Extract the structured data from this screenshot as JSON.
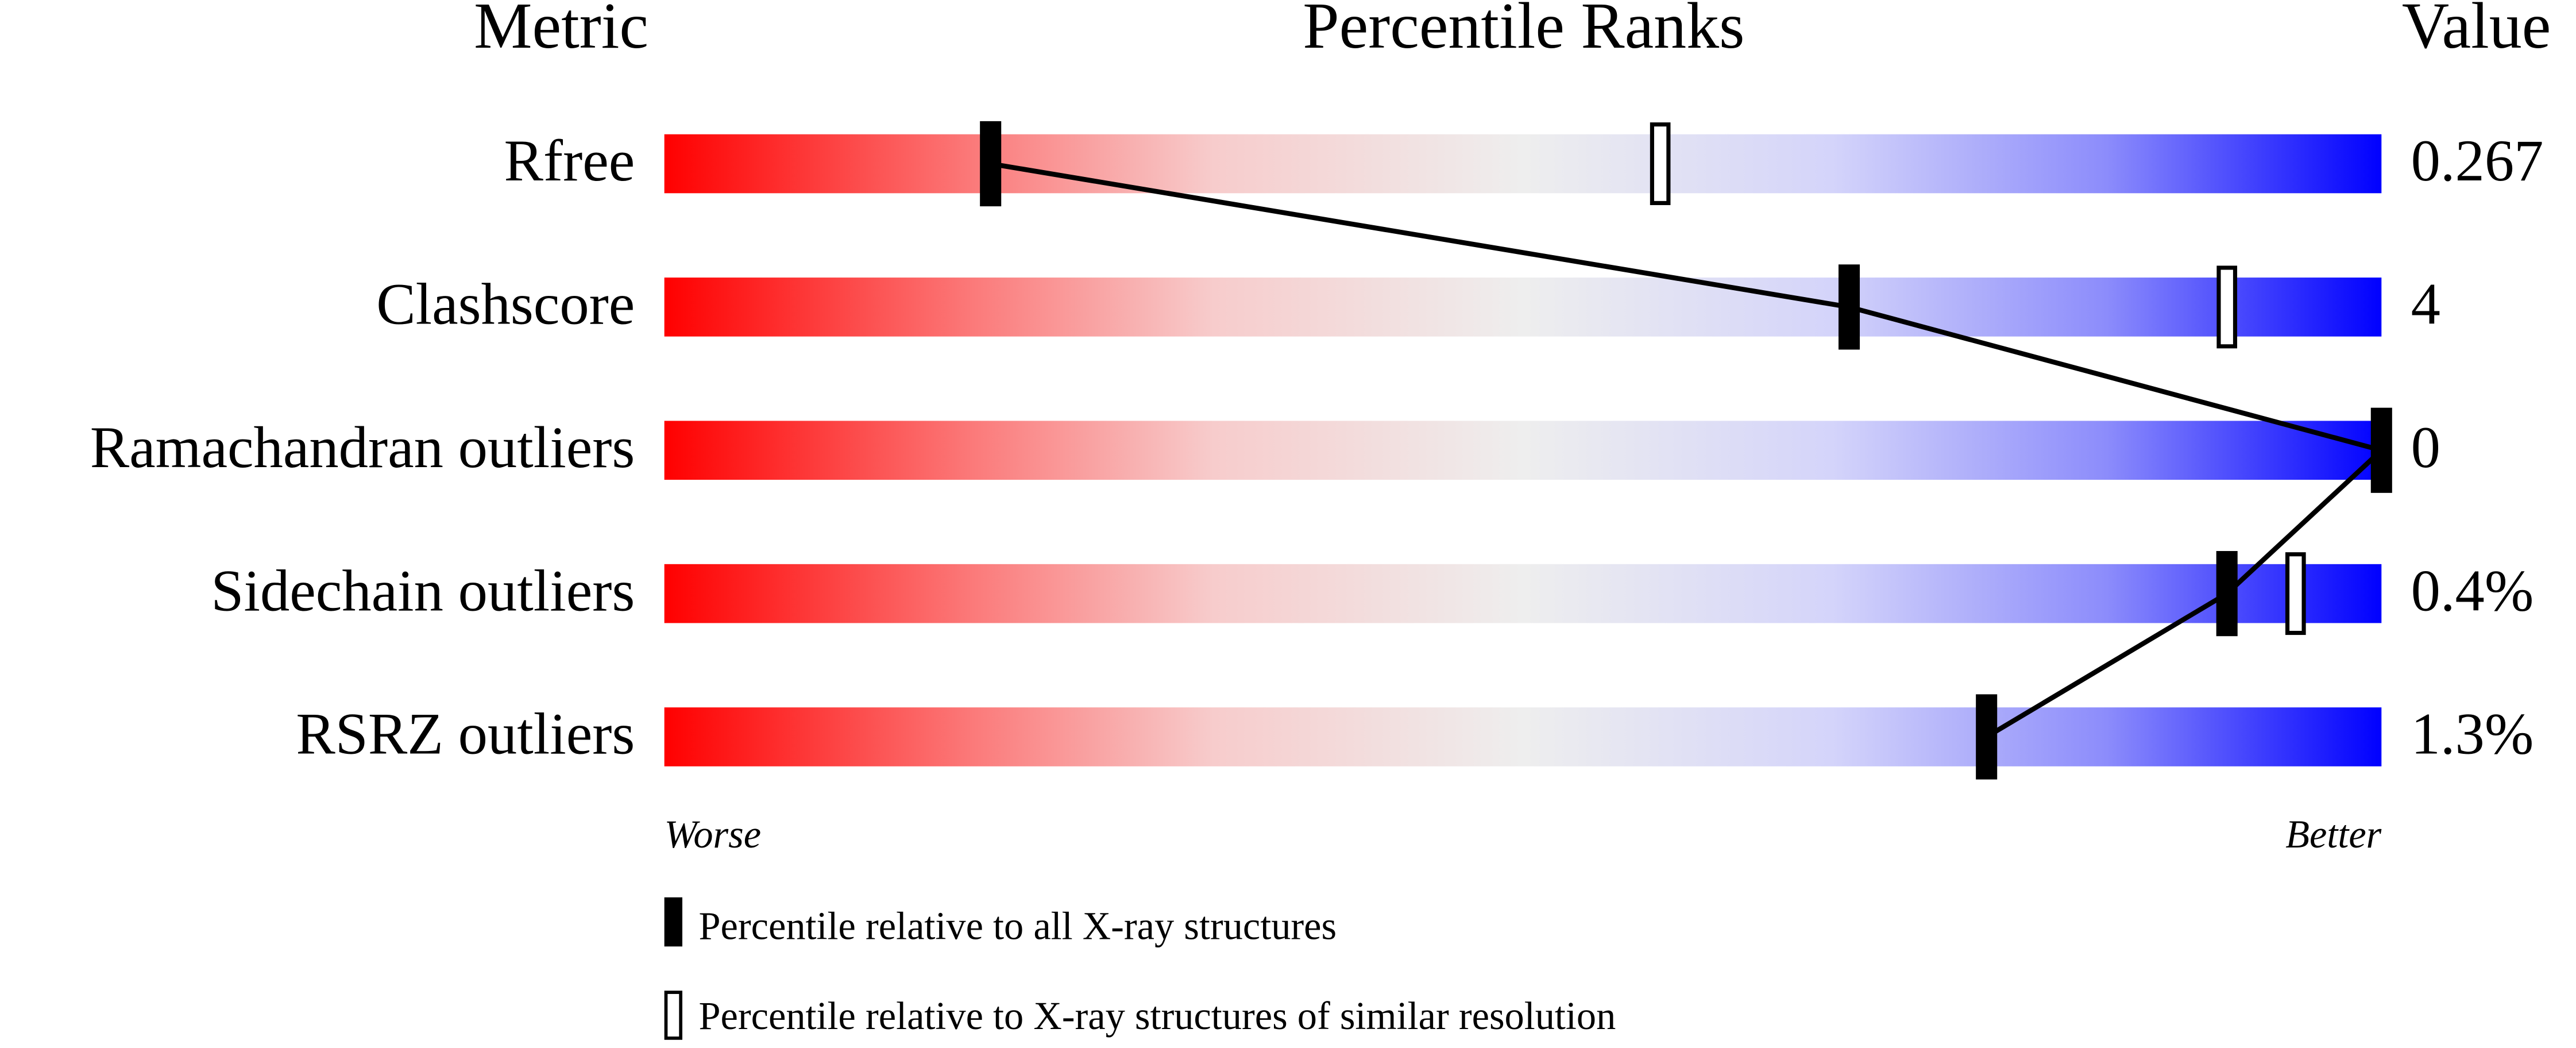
{
  "chart_data": {
    "type": "percentile-slider",
    "headers": [
      "Metric",
      "Percentile Ranks",
      "Value"
    ],
    "categories": [
      "Rfree",
      "Clashscore",
      "Ramachandran outliers",
      "Sidechain outliers",
      "RSRZ outliers"
    ],
    "metric_values": [
      "0.267",
      "4",
      "0",
      "0.4%",
      "1.3%"
    ],
    "series": [
      {
        "name": "Percentile relative to all X-ray structures",
        "values": [
          19,
          69,
          100,
          91,
          77
        ]
      },
      {
        "name": "Percentile relative to X-ray structures of similar resolution",
        "values": [
          58,
          91,
          null,
          95,
          null
        ]
      }
    ],
    "xlim": [
      0,
      100
    ],
    "worse_label": "Worse",
    "better_label": "Better"
  }
}
